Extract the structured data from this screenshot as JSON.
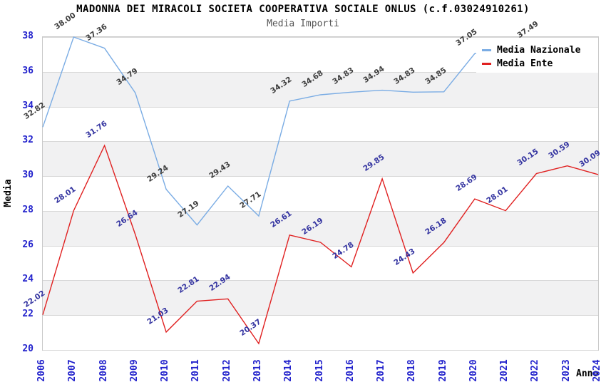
{
  "chart_data": {
    "type": "line",
    "title": "MADONNA DEI MIRACOLI SOCIETA COOPERATIVA SOCIALE ONLUS (c.f.03024910261)",
    "subtitle": "Media Importi",
    "xlabel": "Anno",
    "ylabel": "Media",
    "x": [
      2006,
      2007,
      2008,
      2009,
      2010,
      2011,
      2012,
      2013,
      2014,
      2015,
      2016,
      2017,
      2018,
      2019,
      2020,
      2021,
      2022,
      2023,
      2024
    ],
    "ylim": [
      20,
      38
    ],
    "yticks": [
      20,
      22,
      24,
      26,
      28,
      30,
      32,
      34,
      36,
      38
    ],
    "grid": true,
    "alternating_bands": true,
    "legend_position": "top-right",
    "series": [
      {
        "name": "Media Nazionale",
        "color": "#7aace4",
        "label_color": "#3d3d3d",
        "values": [
          32.82,
          38.0,
          37.36,
          34.79,
          29.24,
          27.19,
          29.43,
          27.71,
          34.32,
          34.68,
          34.83,
          34.94,
          34.83,
          34.85,
          37.05,
          null,
          37.49,
          null,
          null
        ]
      },
      {
        "name": "Media Ente",
        "color": "#e02020",
        "label_color": "#3333a0",
        "values": [
          22.02,
          28.01,
          31.76,
          26.64,
          21.03,
          22.81,
          22.94,
          20.37,
          26.61,
          26.19,
          24.78,
          29.85,
          24.43,
          26.18,
          28.69,
          28.01,
          30.15,
          30.59,
          30.09
        ]
      }
    ],
    "colors": {
      "tick_label": "#2222cc",
      "grid_line": "#d8d8d8",
      "plot_border": "#c9c9c9",
      "band": "#f1f1f2",
      "title": "#000000",
      "subtitle": "#555555"
    }
  }
}
